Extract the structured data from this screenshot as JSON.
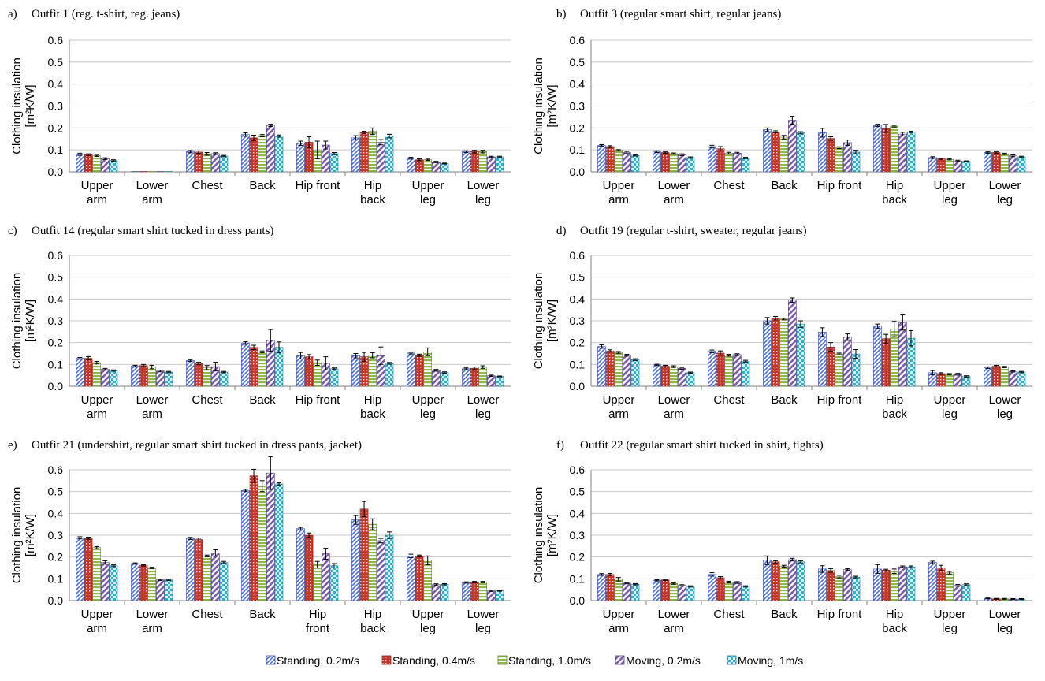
{
  "legend": [
    {
      "name": "Standing, 0.2m/s",
      "color": "#4a6fd1",
      "pattern": "diag"
    },
    {
      "name": "Standing, 0.4m/s",
      "color": "#c0392b",
      "pattern": "dots"
    },
    {
      "name": "Standing, 1.0m/s",
      "color": "#8db84a",
      "pattern": "horiz"
    },
    {
      "name": "Moving, 0.2m/s",
      "color": "#7b5ea7",
      "pattern": "wide-diag"
    },
    {
      "name": "Moving, 1m/s",
      "color": "#31b0c8",
      "pattern": "check"
    }
  ],
  "chart_data": [
    {
      "type": "bar",
      "panel": "a)",
      "title": "Outfit 1 (reg. t-shirt, reg. jeans)",
      "ylabel": [
        "Clothing insulation",
        "[m²K/W]"
      ],
      "ylim": [
        0,
        0.6
      ],
      "yticks": [
        "0.0",
        "0.1",
        "0.2",
        "0.3",
        "0.4",
        "0.5",
        "0.6"
      ],
      "categories": [
        [
          "Upper",
          "arm"
        ],
        [
          "Lower",
          "arm"
        ],
        [
          "Chest"
        ],
        [
          "Back"
        ],
        [
          "Hip front"
        ],
        [
          "Hip",
          "back"
        ],
        [
          "Upper",
          "leg"
        ],
        [
          "Lower",
          "leg"
        ]
      ],
      "series": [
        {
          "name": "Standing, 0.2m/s",
          "values": [
            0.08,
            0.0,
            0.092,
            0.17,
            0.13,
            0.155,
            0.062,
            0.092
          ],
          "err": [
            0.005,
            0,
            0.005,
            0.008,
            0.01,
            0.01,
            0.004,
            0.004
          ]
        },
        {
          "name": "Standing, 0.4m/s",
          "values": [
            0.078,
            0.0,
            0.09,
            0.155,
            0.135,
            0.18,
            0.055,
            0.092
          ],
          "err": [
            0.004,
            0,
            0.005,
            0.012,
            0.025,
            0.005,
            0.004,
            0.006
          ]
        },
        {
          "name": "Standing, 1.0m/s",
          "values": [
            0.073,
            0.0,
            0.082,
            0.165,
            0.1,
            0.185,
            0.055,
            0.092
          ],
          "err": [
            0.003,
            0,
            0.006,
            0.005,
            0.04,
            0.015,
            0.003,
            0.006
          ]
        },
        {
          "name": "Moving, 0.2m/s",
          "values": [
            0.06,
            0.0,
            0.083,
            0.212,
            0.122,
            0.135,
            0.045,
            0.068
          ],
          "err": [
            0.004,
            0,
            0.004,
            0.005,
            0.018,
            0.012,
            0.003,
            0.003
          ]
        },
        {
          "name": "Moving, 1m/s",
          "values": [
            0.052,
            0.0,
            0.072,
            0.163,
            0.083,
            0.163,
            0.038,
            0.068
          ],
          "err": [
            0.003,
            0,
            0.003,
            0.005,
            0.005,
            0.008,
            0.002,
            0.003
          ]
        }
      ]
    },
    {
      "type": "bar",
      "panel": "b)",
      "title": "Outfit 3 (regular smart shirt, regular jeans)",
      "ylabel": [
        "Clothing insulation",
        "[m²K/W]"
      ],
      "ylim": [
        0,
        0.6
      ],
      "yticks": [
        "0.0",
        "0.1",
        "0.2",
        "0.3",
        "0.4",
        "0.5",
        "0.6"
      ],
      "categories": [
        [
          "Upper",
          "arm"
        ],
        [
          "Lower",
          "arm"
        ],
        [
          "Chest"
        ],
        [
          "Back"
        ],
        [
          "Hip front"
        ],
        [
          "Hip",
          "back"
        ],
        [
          "Upper",
          "leg"
        ],
        [
          "Lower",
          "leg"
        ]
      ],
      "series": [
        {
          "name": "Standing, 0.2m/s",
          "values": [
            0.12,
            0.092,
            0.115,
            0.192,
            0.178,
            0.212,
            0.065,
            0.088
          ],
          "err": [
            0.004,
            0.004,
            0.006,
            0.008,
            0.02,
            0.005,
            0.004,
            0.003
          ]
        },
        {
          "name": "Standing, 0.4m/s",
          "values": [
            0.115,
            0.088,
            0.105,
            0.182,
            0.152,
            0.198,
            0.06,
            0.088
          ],
          "err": [
            0.004,
            0.003,
            0.01,
            0.005,
            0.008,
            0.018,
            0.003,
            0.003
          ]
        },
        {
          "name": "Standing, 1.0m/s",
          "values": [
            0.098,
            0.083,
            0.085,
            0.158,
            0.11,
            0.208,
            0.057,
            0.082
          ],
          "err": [
            0.003,
            0.003,
            0.004,
            0.008,
            0.004,
            0.004,
            0.003,
            0.003
          ]
        },
        {
          "name": "Moving, 0.2m/s",
          "values": [
            0.088,
            0.078,
            0.085,
            0.235,
            0.133,
            0.172,
            0.05,
            0.073
          ],
          "err": [
            0.005,
            0.004,
            0.004,
            0.018,
            0.012,
            0.008,
            0.003,
            0.004
          ]
        },
        {
          "name": "Moving, 1m/s",
          "values": [
            0.075,
            0.065,
            0.063,
            0.178,
            0.09,
            0.182,
            0.048,
            0.068
          ],
          "err": [
            0.003,
            0.003,
            0.003,
            0.005,
            0.008,
            0.003,
            0.002,
            0.003
          ]
        }
      ]
    },
    {
      "type": "bar",
      "panel": "c)",
      "title": "Outfit 14 (regular smart shirt tucked in dress pants)",
      "ylabel": [
        "Clothing insulation",
        "[m²K/W]"
      ],
      "ylim": [
        0,
        0.6
      ],
      "yticks": [
        "0.0",
        "0.1",
        "0.2",
        "0.3",
        "0.4",
        "0.5",
        "0.6"
      ],
      "categories": [
        [
          "Upper",
          "arm"
        ],
        [
          "Lower",
          "arm"
        ],
        [
          "Chest"
        ],
        [
          "Back"
        ],
        [
          "Hip front"
        ],
        [
          "Hip",
          "back"
        ],
        [
          "Upper",
          "leg"
        ],
        [
          "Lower",
          "leg"
        ]
      ],
      "series": [
        {
          "name": "Standing, 0.2m/s",
          "values": [
            0.128,
            0.092,
            0.118,
            0.198,
            0.14,
            0.14,
            0.152,
            0.08
          ],
          "err": [
            0.004,
            0.004,
            0.004,
            0.006,
            0.015,
            0.01,
            0.004,
            0.004
          ]
        },
        {
          "name": "Standing, 0.4m/s",
          "values": [
            0.128,
            0.095,
            0.105,
            0.178,
            0.135,
            0.135,
            0.142,
            0.082
          ],
          "err": [
            0.008,
            0.005,
            0.005,
            0.01,
            0.01,
            0.02,
            0.005,
            0.006
          ]
        },
        {
          "name": "Standing, 1.0m/s",
          "values": [
            0.108,
            0.088,
            0.085,
            0.158,
            0.108,
            0.142,
            0.158,
            0.088
          ],
          "err": [
            0.006,
            0.008,
            0.01,
            0.004,
            0.012,
            0.012,
            0.018,
            0.006
          ]
        },
        {
          "name": "Moving, 0.2m/s",
          "values": [
            0.078,
            0.07,
            0.09,
            0.21,
            0.105,
            0.14,
            0.073,
            0.048
          ],
          "err": [
            0.004,
            0.004,
            0.02,
            0.05,
            0.03,
            0.04,
            0.004,
            0.003
          ]
        },
        {
          "name": "Moving, 1m/s",
          "values": [
            0.072,
            0.065,
            0.065,
            0.178,
            0.08,
            0.105,
            0.063,
            0.045
          ],
          "err": [
            0.003,
            0.003,
            0.003,
            0.025,
            0.004,
            0.004,
            0.003,
            0.002
          ]
        }
      ]
    },
    {
      "type": "bar",
      "panel": "d)",
      "title": "Outfit 19 (regular t-shirt, sweater, regular jeans)",
      "ylabel": [
        "Clothing insulation",
        "[m²K/W]"
      ],
      "ylim": [
        0,
        0.6
      ],
      "yticks": [
        "0.0",
        "0.1",
        "0.2",
        "0.3",
        "0.4",
        "0.5",
        "0.6"
      ],
      "categories": [
        [
          "Upper",
          "arm"
        ],
        [
          "Lower",
          "arm"
        ],
        [
          "Chest"
        ],
        [
          "Back"
        ],
        [
          "Hip front"
        ],
        [
          "Hip",
          "back"
        ],
        [
          "Upper",
          "leg"
        ],
        [
          "Lower",
          "leg"
        ]
      ],
      "series": [
        {
          "name": "Standing, 0.2m/s",
          "values": [
            0.182,
            0.098,
            0.16,
            0.3,
            0.248,
            0.275,
            0.062,
            0.085
          ],
          "err": [
            0.008,
            0.003,
            0.006,
            0.015,
            0.02,
            0.01,
            0.01,
            0.004
          ]
        },
        {
          "name": "Standing, 0.4m/s",
          "values": [
            0.162,
            0.092,
            0.152,
            0.312,
            0.18,
            0.218,
            0.058,
            0.092
          ],
          "err": [
            0.005,
            0.004,
            0.01,
            0.008,
            0.02,
            0.02,
            0.004,
            0.004
          ]
        },
        {
          "name": "Standing, 1.0m/s",
          "values": [
            0.155,
            0.09,
            0.142,
            0.308,
            0.148,
            0.262,
            0.055,
            0.088
          ],
          "err": [
            0.004,
            0.004,
            0.004,
            0.004,
            0.004,
            0.035,
            0.003,
            0.003
          ]
        },
        {
          "name": "Moving, 0.2m/s",
          "values": [
            0.142,
            0.082,
            0.145,
            0.395,
            0.225,
            0.292,
            0.055,
            0.068
          ],
          "err": [
            0.004,
            0.004,
            0.004,
            0.01,
            0.015,
            0.035,
            0.004,
            0.003
          ]
        },
        {
          "name": "Moving, 1m/s",
          "values": [
            0.122,
            0.062,
            0.115,
            0.285,
            0.148,
            0.22,
            0.045,
            0.065
          ],
          "err": [
            0.004,
            0.003,
            0.004,
            0.015,
            0.02,
            0.035,
            0.003,
            0.003
          ]
        }
      ]
    },
    {
      "type": "bar",
      "panel": "e)",
      "title": "Outfit 21 (undershirt, regular smart shirt tucked in dress pants, jacket)",
      "ylabel": [
        "Clothing insulation",
        "[m²K/W]"
      ],
      "ylim": [
        0,
        0.6
      ],
      "yticks": [
        "0.0",
        "0.1",
        "0.2",
        "0.3",
        "0.4",
        "0.5",
        "0.6"
      ],
      "categories": [
        [
          "Upper",
          "arm"
        ],
        [
          "Lower",
          "arm"
        ],
        [
          "Chest"
        ],
        [
          "Back"
        ],
        [
          "Hip",
          "front"
        ],
        [
          "Hip",
          "back"
        ],
        [
          "Upper",
          "leg"
        ],
        [
          "Lower",
          "leg"
        ]
      ],
      "series": [
        {
          "name": "Standing, 0.2m/s",
          "values": [
            0.288,
            0.17,
            0.285,
            0.505,
            0.33,
            0.37,
            0.205,
            0.083
          ],
          "err": [
            0.005,
            0.003,
            0.005,
            0.005,
            0.006,
            0.02,
            0.008,
            0.003
          ]
        },
        {
          "name": "Standing, 0.4m/s",
          "values": [
            0.285,
            0.162,
            0.28,
            0.572,
            0.3,
            0.42,
            0.205,
            0.085
          ],
          "err": [
            0.006,
            0.003,
            0.006,
            0.03,
            0.01,
            0.035,
            0.004,
            0.003
          ]
        },
        {
          "name": "Standing, 1.0m/s",
          "values": [
            0.243,
            0.15,
            0.205,
            0.525,
            0.165,
            0.35,
            0.185,
            0.085
          ],
          "err": [
            0.005,
            0.003,
            0.004,
            0.025,
            0.015,
            0.025,
            0.02,
            0.003
          ]
        },
        {
          "name": "Moving, 0.2m/s",
          "values": [
            0.175,
            0.095,
            0.218,
            0.585,
            0.215,
            0.275,
            0.073,
            0.045
          ],
          "err": [
            0.008,
            0.003,
            0.015,
            0.075,
            0.025,
            0.01,
            0.004,
            0.003
          ]
        },
        {
          "name": "Moving, 1m/s",
          "values": [
            0.16,
            0.095,
            0.175,
            0.535,
            0.16,
            0.3,
            0.075,
            0.045
          ],
          "err": [
            0.004,
            0.003,
            0.005,
            0.005,
            0.01,
            0.015,
            0.003,
            0.002
          ]
        }
      ]
    },
    {
      "type": "bar",
      "panel": "f)",
      "title": "Outfit 22 (regular smart shirt tucked in shirt, tights)",
      "ylabel": [
        "Clothing insulation",
        "[m²K/W]"
      ],
      "ylim": [
        0,
        0.6
      ],
      "yticks": [
        "0.0",
        "0.1",
        "0.2",
        "0.3",
        "0.4",
        "0.5",
        "0.6"
      ],
      "categories": [
        [
          "Upper",
          "arm"
        ],
        [
          "Lower",
          "arm"
        ],
        [
          "Chest"
        ],
        [
          "Back"
        ],
        [
          "Hip front"
        ],
        [
          "Hip",
          "back"
        ],
        [
          "Upper",
          "leg"
        ],
        [
          "Lower",
          "leg"
        ]
      ],
      "series": [
        {
          "name": "Standing, 0.2m/s",
          "values": [
            0.12,
            0.093,
            0.12,
            0.185,
            0.145,
            0.145,
            0.175,
            0.01
          ],
          "err": [
            0.004,
            0.003,
            0.008,
            0.02,
            0.015,
            0.02,
            0.006,
            0.002
          ]
        },
        {
          "name": "Standing, 0.4m/s",
          "values": [
            0.12,
            0.095,
            0.105,
            0.178,
            0.138,
            0.14,
            0.15,
            0.008
          ],
          "err": [
            0.005,
            0.003,
            0.005,
            0.005,
            0.008,
            0.004,
            0.012,
            0.002
          ]
        },
        {
          "name": "Standing, 1.0m/s",
          "values": [
            0.098,
            0.078,
            0.085,
            0.158,
            0.11,
            0.135,
            0.128,
            0.008
          ],
          "err": [
            0.008,
            0.003,
            0.004,
            0.004,
            0.006,
            0.01,
            0.006,
            0.002
          ]
        },
        {
          "name": "Moving, 0.2m/s",
          "values": [
            0.08,
            0.07,
            0.083,
            0.188,
            0.142,
            0.155,
            0.07,
            0.007
          ],
          "err": [
            0.003,
            0.003,
            0.004,
            0.006,
            0.004,
            0.004,
            0.004,
            0.002
          ]
        },
        {
          "name": "Moving, 1m/s",
          "values": [
            0.075,
            0.065,
            0.065,
            0.178,
            0.108,
            0.155,
            0.073,
            0.007
          ],
          "err": [
            0.003,
            0.003,
            0.003,
            0.005,
            0.004,
            0.004,
            0.004,
            0.002
          ]
        }
      ]
    }
  ]
}
